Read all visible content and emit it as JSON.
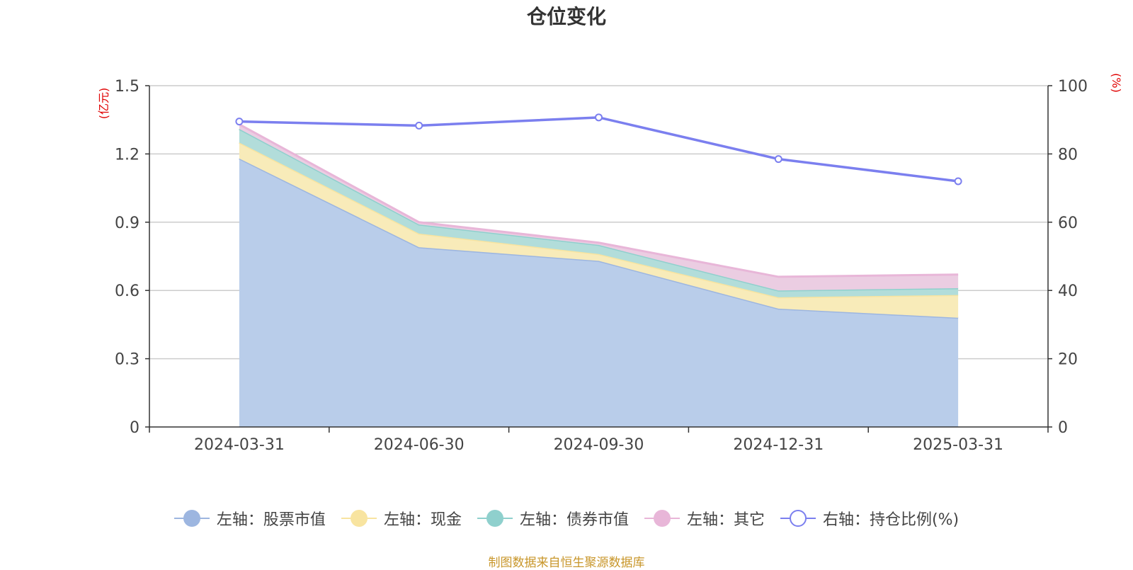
{
  "chart_data": {
    "type": "area",
    "title": "仓位变化",
    "categories": [
      "2024-03-31",
      "2024-06-30",
      "2024-09-30",
      "2024-12-31",
      "2025-03-31"
    ],
    "left_axis": {
      "unit": "(亿元)",
      "ylim": [
        0,
        1.5
      ],
      "ticks": [
        "0",
        "0.3",
        "0.6",
        "0.9",
        "1.2",
        "1.5"
      ]
    },
    "right_axis": {
      "unit": "(%)",
      "ylim": [
        0,
        100
      ],
      "ticks": [
        "0",
        "20",
        "40",
        "60",
        "80",
        "100"
      ]
    },
    "stacked_series": [
      {
        "name": "左轴：股票市值",
        "color": "#9db6e0",
        "fill": "#b9cdea",
        "values": [
          1.18,
          0.79,
          0.73,
          0.52,
          0.48
        ]
      },
      {
        "name": "左轴：现金",
        "color": "#f8e4a0",
        "fill": "#f8ebb9",
        "values": [
          0.07,
          0.06,
          0.03,
          0.05,
          0.1
        ]
      },
      {
        "name": "左轴：债券市值",
        "color": "#8fd0cd",
        "fill": "#b2ddda",
        "values": [
          0.06,
          0.04,
          0.04,
          0.03,
          0.03
        ]
      },
      {
        "name": "左轴：其它",
        "color": "#e8b6d8",
        "fill": "#ebcde2",
        "values": [
          0.02,
          0.01,
          0.01,
          0.06,
          0.06
        ]
      }
    ],
    "line_series": [
      {
        "name": "右轴：持仓比例(%)",
        "color": "#7b7fef",
        "axis": "right",
        "values": [
          89.5,
          88.3,
          90.7,
          78.5,
          72.0
        ]
      }
    ],
    "legend_position": "bottom",
    "grid": true
  },
  "source": "制图数据来自恒生聚源数据库"
}
